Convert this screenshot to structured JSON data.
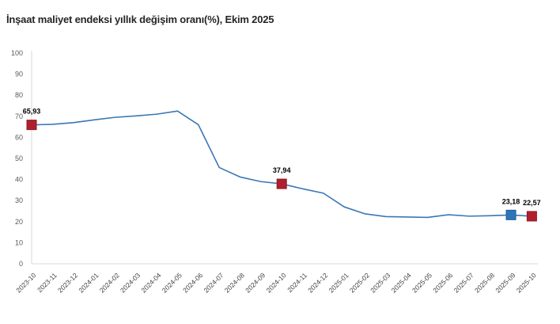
{
  "chart_data": {
    "type": "line",
    "title": "İnşaat maliyet endeksi yıllık değişim oranı(%), Ekim 2025",
    "xlabel": "",
    "ylabel": "",
    "ylim": [
      0,
      100
    ],
    "ytick_step": 10,
    "grid": false,
    "legend_position": "none",
    "categories": [
      "2023-10",
      "2023-11",
      "2023-12",
      "2024-01",
      "2024-02",
      "2024-03",
      "2024-04",
      "2024-05",
      "2024-06",
      "2024-07",
      "2024-08",
      "2024-09",
      "2024-10",
      "2024-11",
      "2024-12",
      "2025-01",
      "2025-02",
      "2025-03",
      "2025-04",
      "2025-05",
      "2025-06",
      "2025-07",
      "2025-08",
      "2025-09",
      "2025-10"
    ],
    "series": [
      {
        "name": "İnşaat maliyet endeksi yıllık değişim oranı (%)",
        "values": [
          65.93,
          66.2,
          67.0,
          68.3,
          69.5,
          70.2,
          71.0,
          72.5,
          66.0,
          45.7,
          41.2,
          39.0,
          37.94,
          35.6,
          33.5,
          27.0,
          23.7,
          22.4,
          22.2,
          22.0,
          23.3,
          22.6,
          22.8,
          23.18,
          22.57
        ]
      }
    ],
    "annotations": [
      {
        "index": 0,
        "category": "2023-10",
        "label": "65,93",
        "marker_color": "#B11F2D",
        "marker_border": "#8E1823"
      },
      {
        "index": 12,
        "category": "2024-10",
        "label": "37,94",
        "marker_color": "#B11F2D",
        "marker_border": "#8E1823"
      },
      {
        "index": 23,
        "category": "2025-09",
        "label": "23,18",
        "marker_color": "#2E75B5",
        "marker_border": "#1F5C96"
      },
      {
        "index": 24,
        "category": "2025-10",
        "label": "22,57",
        "marker_color": "#B11F2D",
        "marker_border": "#8E1823"
      }
    ],
    "colors": {
      "line": "#3A78B5",
      "axis": "#D9D9D9",
      "y_tick_label": "#595959",
      "x_tick_label": "#454545",
      "data_label": "#000000",
      "background": "#FFFFFF"
    }
  }
}
